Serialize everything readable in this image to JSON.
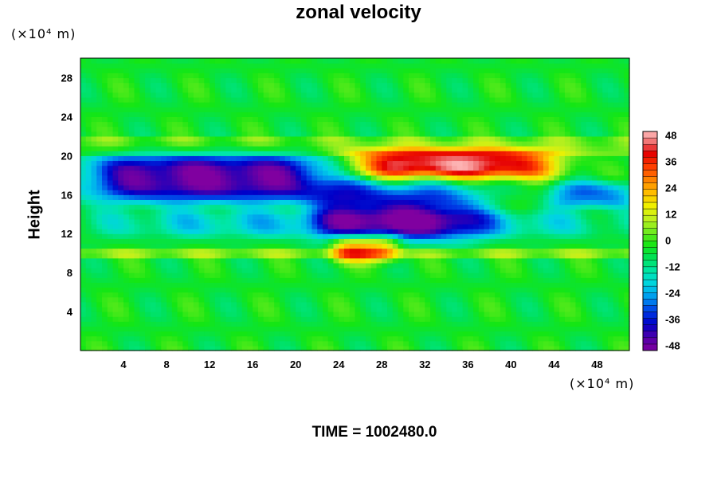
{
  "chart_data": {
    "type": "heatmap",
    "title": "zonal velocity",
    "ylabel": "Height",
    "xlabel": "",
    "x_unit": "(×10⁴ m)",
    "y_unit": "(×10⁴ m)",
    "x_ticks": [
      4,
      8,
      12,
      16,
      20,
      24,
      28,
      32,
      36,
      40,
      44,
      48
    ],
    "y_ticks": [
      4,
      8,
      12,
      16,
      20,
      24,
      28
    ],
    "xlim": [
      0,
      51
    ],
    "ylim": [
      0,
      30
    ],
    "colorbar": {
      "ticks": [
        48,
        36,
        24,
        12,
        0,
        -12,
        -24,
        -36,
        -48
      ],
      "range": [
        -50,
        50
      ]
    },
    "features": [
      {
        "desc": "strong westward core",
        "x": [
          0,
          24
        ],
        "y": [
          15.5,
          20
        ],
        "value": -48
      },
      {
        "desc": "westward band",
        "x": [
          22,
          37
        ],
        "y": [
          11.5,
          17
        ],
        "value": -38
      },
      {
        "desc": "strong eastward jet",
        "x": [
          25,
          44
        ],
        "y": [
          18,
          20.3
        ],
        "value": 46
      },
      {
        "desc": "eastward patch",
        "x": [
          24,
          29
        ],
        "y": [
          9.5,
          11.5
        ],
        "value": 30
      },
      {
        "desc": "weak westward layer",
        "x": [
          0,
          51
        ],
        "y": [
          12,
          14
        ],
        "value": -20
      },
      {
        "desc": "westward patch right",
        "x": [
          44,
          51
        ],
        "y": [
          15,
          17
        ],
        "value": -28
      }
    ],
    "background_value": -4
  },
  "footer": {
    "time_label": "TIME = 1002480.0"
  }
}
